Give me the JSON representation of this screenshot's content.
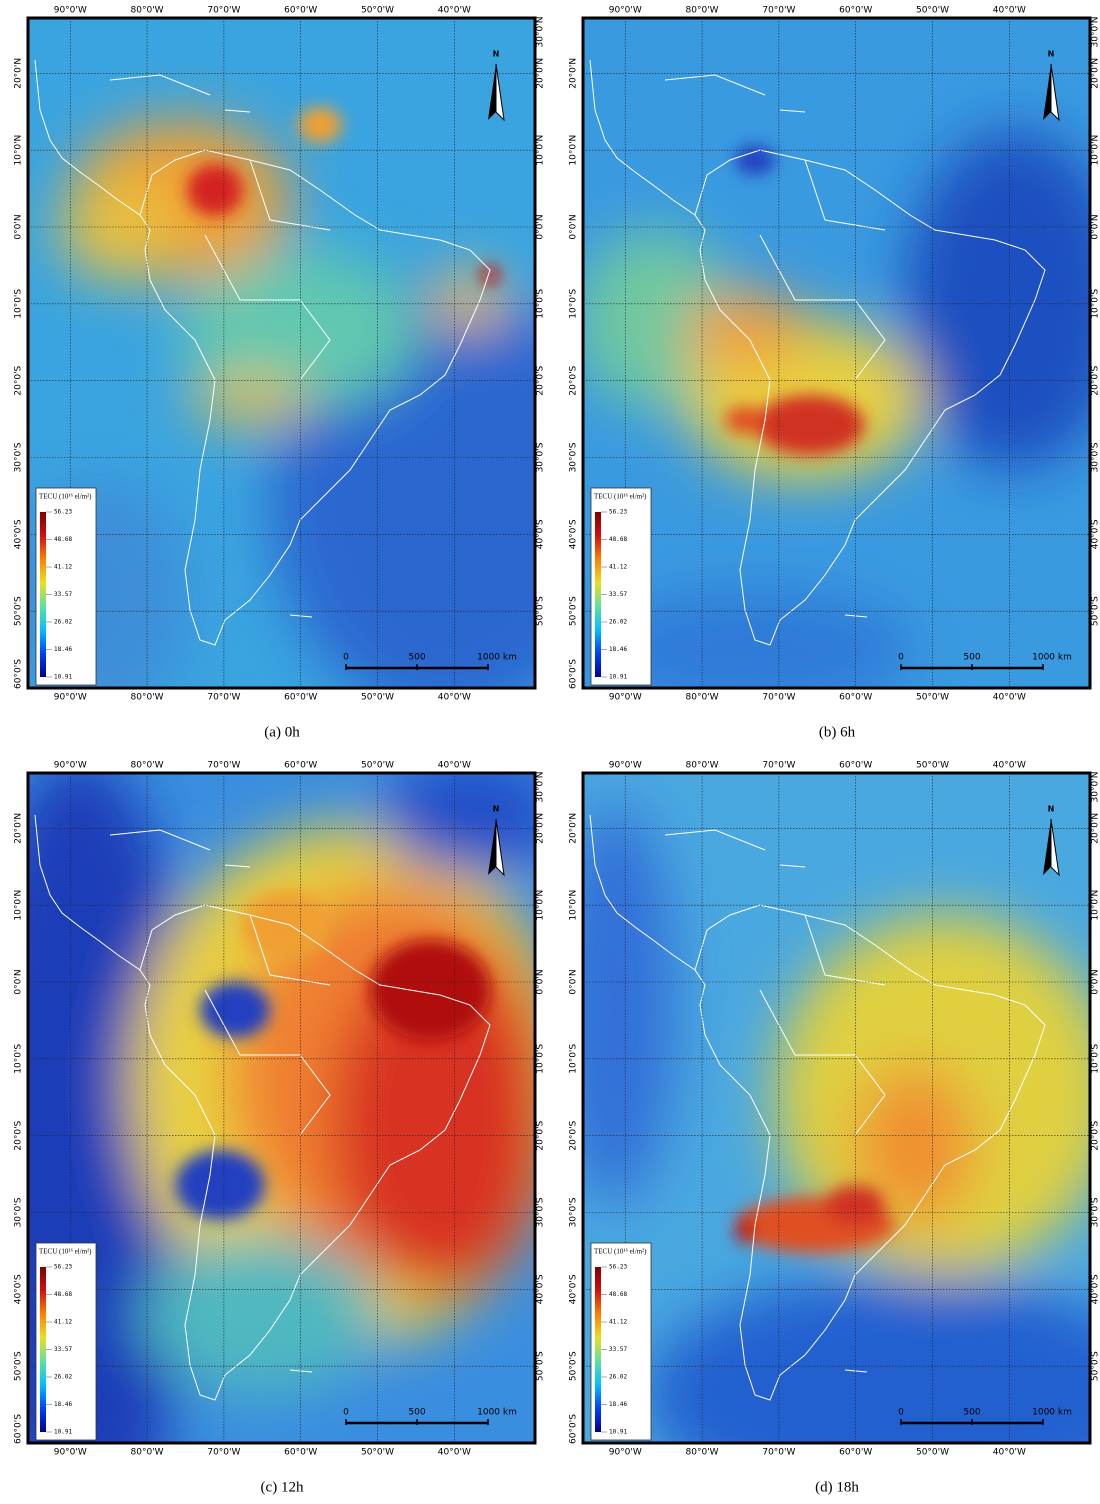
{
  "map": {
    "lon_range": [
      -95.5,
      -29.5
    ],
    "lat_range": [
      -60,
      27.2
    ],
    "lon_ticks": [
      {
        "value": -90,
        "label": "90°0'W"
      },
      {
        "value": -80,
        "label": "80°0'W"
      },
      {
        "value": -70,
        "label": "70°0'W"
      },
      {
        "value": -60,
        "label": "60°0'W"
      },
      {
        "value": -50,
        "label": "50°0'W"
      },
      {
        "value": -40,
        "label": "40°0'W"
      }
    ],
    "lat_ticks_left": [
      {
        "value": 20,
        "label": "20°0'N"
      },
      {
        "value": 10,
        "label": "10°0'N"
      },
      {
        "value": 0,
        "label": "0°0'N"
      },
      {
        "value": -10,
        "label": "10°0'S"
      },
      {
        "value": -20,
        "label": "20°0'S"
      },
      {
        "value": -30,
        "label": "30°0'S"
      },
      {
        "value": -40,
        "label": "40°0'S"
      },
      {
        "value": -50,
        "label": "50°0'S"
      },
      {
        "value": -60,
        "label": "60°0'S"
      }
    ],
    "lat_ticks_right": [
      {
        "value": 30,
        "label": "30°0'N"
      },
      {
        "value": 20,
        "label": "20°0'N"
      },
      {
        "value": 10,
        "label": "10°0'N"
      },
      {
        "value": 0,
        "label": "0°0'N"
      },
      {
        "value": -10,
        "label": "10°0'S"
      },
      {
        "value": -20,
        "label": "20°0'S"
      },
      {
        "value": -30,
        "label": "30°0'S"
      },
      {
        "value": -40,
        "label": "40°0'S"
      },
      {
        "value": -50,
        "label": "50°0'S"
      }
    ],
    "north": "N",
    "scale_bar": [
      "0",
      "500",
      "1000 km"
    ],
    "colorbar": {
      "title": "TECU (10¹⁶ el/m²)",
      "range": [
        10.91,
        56.23
      ],
      "ticks": [
        56.23,
        48.68,
        41.12,
        33.57,
        26.02,
        18.46,
        10.91
      ],
      "colors": [
        "#00008f",
        "#0040ff",
        "#00c0ff",
        "#60e0a0",
        "#e8e020",
        "#ff8000",
        "#d01010",
        "#800000"
      ]
    }
  },
  "panels": [
    {
      "caption": "(a) 0h"
    },
    {
      "caption": "(b) 6h"
    },
    {
      "caption": "(c) 12h"
    },
    {
      "caption": "(d) 18h"
    }
  ]
}
